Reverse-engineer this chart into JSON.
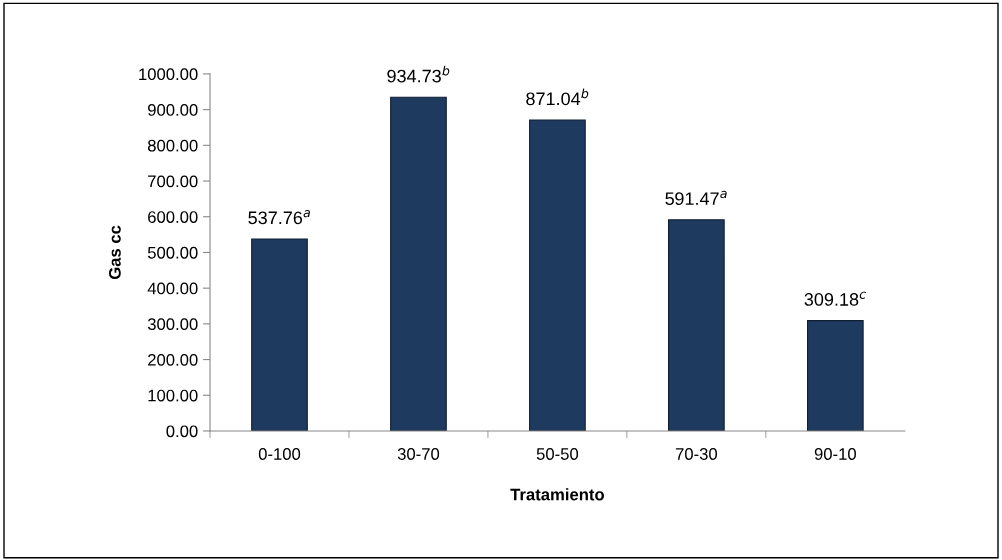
{
  "chart_data": {
    "type": "bar",
    "xlabel": "Tratamiento",
    "ylabel": "Gas cc",
    "categories": [
      "0-100",
      "30-70",
      "50-50",
      "70-30",
      "90-10"
    ],
    "values": [
      537.76,
      934.73,
      871.04,
      591.47,
      309.18
    ],
    "value_labels": [
      "537.76$^{a}$",
      "934.73$^{b}$",
      "871.04$^{b}$",
      "591.47$^{a}$",
      "309.18$^{c}$"
    ],
    "color": "#1f3a5f",
    "ylim": [
      0,
      1000
    ],
    "yticks": [
      {
        "value": 0,
        "label": "0.00"
      },
      {
        "value": 100,
        "label": "100.00"
      },
      {
        "value": 200,
        "label": "200.00"
      },
      {
        "value": 300,
        "label": "300.00"
      },
      {
        "value": 400,
        "label": "400.00"
      },
      {
        "value": 500,
        "label": "500.00"
      },
      {
        "value": 600,
        "label": "600.00"
      },
      {
        "value": 700,
        "label": "700.00"
      },
      {
        "value": 800,
        "label": "800.00"
      },
      {
        "value": 900,
        "label": "900.00"
      },
      {
        "value": 1000,
        "label": "1000.00"
      }
    ],
    "grid": false,
    "legend": false
  }
}
